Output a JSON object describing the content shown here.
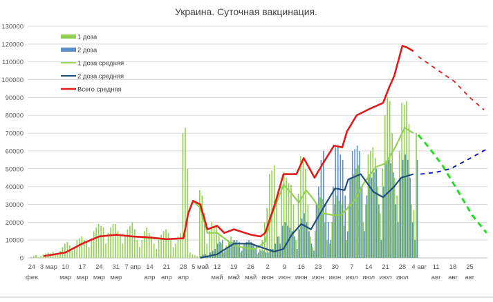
{
  "chart_data": {
    "type": "bar+line",
    "title": "Украина. Суточная вакцинация.",
    "xlabel": "",
    "ylabel": "",
    "ylim": [
      0,
      130000
    ],
    "yticks": [
      "0",
      "10000",
      "20000",
      "30000",
      "40000",
      "50000",
      "60000",
      "70000",
      "80000",
      "90000",
      "100000",
      "110000",
      "120000",
      "130000"
    ],
    "grid": true,
    "legend_position": "top-left",
    "x_unit": "days since 24 фев",
    "xlim": [
      -2,
      189
    ],
    "xticks": [
      {
        "day": 0,
        "l1": "24",
        "l2": "фев"
      },
      {
        "day": 7,
        "l1": "3 мар",
        "l2": ""
      },
      {
        "day": 14,
        "l1": "10",
        "l2": "мар"
      },
      {
        "day": 21,
        "l1": "17",
        "l2": "мар"
      },
      {
        "day": 28,
        "l1": "24",
        "l2": "мар"
      },
      {
        "day": 35,
        "l1": "31",
        "l2": "мар"
      },
      {
        "day": 42,
        "l1": "7 апр",
        "l2": ""
      },
      {
        "day": 49,
        "l1": "14",
        "l2": "апр"
      },
      {
        "day": 56,
        "l1": "21",
        "l2": "апр"
      },
      {
        "day": 63,
        "l1": "28",
        "l2": "апр"
      },
      {
        "day": 70,
        "l1": "5 май",
        "l2": ""
      },
      {
        "day": 77,
        "l1": "12",
        "l2": "май"
      },
      {
        "day": 84,
        "l1": "19",
        "l2": "май"
      },
      {
        "day": 91,
        "l1": "26",
        "l2": "май"
      },
      {
        "day": 98,
        "l1": "2",
        "l2": "июн"
      },
      {
        "day": 105,
        "l1": "9",
        "l2": "июн"
      },
      {
        "day": 112,
        "l1": "16",
        "l2": "июн"
      },
      {
        "day": 119,
        "l1": "23",
        "l2": "июн"
      },
      {
        "day": 126,
        "l1": "30",
        "l2": "июн"
      },
      {
        "day": 133,
        "l1": "7",
        "l2": "июл"
      },
      {
        "day": 140,
        "l1": "14",
        "l2": "июл"
      },
      {
        "day": 147,
        "l1": "21",
        "l2": "июл"
      },
      {
        "day": 154,
        "l1": "28",
        "l2": "июл"
      },
      {
        "day": 161,
        "l1": "4 авг",
        "l2": ""
      },
      {
        "day": 168,
        "l1": "11",
        "l2": "авг"
      },
      {
        "day": 175,
        "l1": "18",
        "l2": "авг"
      },
      {
        "day": 182,
        "l1": "25",
        "l2": "авг"
      }
    ],
    "series": [
      {
        "name": "1 доза",
        "kind": "bar",
        "color": "#92d050",
        "values": [
          500,
          1000,
          1500,
          500,
          1000,
          2000,
          2500,
          3000,
          2500,
          3500,
          1500,
          2000,
          4000,
          6000,
          8000,
          9000,
          7000,
          4000,
          6000,
          10000,
          11000,
          12000,
          10000,
          9000,
          6000,
          11000,
          15000,
          17000,
          19000,
          18000,
          17000,
          8000,
          14000,
          17000,
          19000,
          19000,
          15000,
          13000,
          8000,
          12000,
          16000,
          18000,
          20000,
          16000,
          10000,
          6000,
          10000,
          15000,
          17000,
          14000,
          12000,
          8000,
          5000,
          10000,
          13000,
          15000,
          16000,
          14000,
          11000,
          6000,
          8000,
          12000,
          14000,
          70000,
          73000,
          50000,
          3000,
          2000,
          1500,
          1000,
          38000,
          35000,
          25000,
          8000,
          15000,
          20000,
          18000,
          18000,
          14000,
          8000,
          3000,
          7000,
          10000,
          12000,
          10000,
          9000,
          7000,
          3000,
          6000,
          8000,
          9000,
          9000,
          7000,
          5000,
          2000,
          5000,
          10000,
          20000,
          28000,
          47000,
          49000,
          52000,
          34000,
          12000,
          40000,
          48000,
          45000,
          42000,
          41000,
          30000,
          10000,
          36000,
          57000,
          54000,
          50000,
          30000,
          12000,
          6000,
          15000,
          30000,
          34000,
          33000,
          20000,
          10000,
          8000,
          20000,
          30000,
          35000,
          32000,
          30000,
          18000,
          10000,
          30000,
          45000,
          47000,
          50000,
          52000,
          40000,
          20000,
          30000,
          58000,
          60000,
          62000,
          56000,
          40000,
          25000,
          50000,
          80000,
          90000,
          88000,
          70000,
          45000,
          35000,
          60000,
          87000,
          86000,
          88000,
          75000,
          30000,
          27000,
          70000
        ]
      },
      {
        "name": "2 доза",
        "kind": "bar",
        "color": "#5b8fc9",
        "values": [
          0,
          0,
          0,
          0,
          0,
          0,
          0,
          0,
          0,
          0,
          0,
          0,
          0,
          0,
          0,
          0,
          0,
          0,
          0,
          0,
          0,
          0,
          0,
          0,
          0,
          0,
          0,
          0,
          0,
          0,
          0,
          0,
          0,
          0,
          0,
          0,
          0,
          0,
          0,
          0,
          0,
          0,
          0,
          0,
          0,
          0,
          0,
          0,
          0,
          0,
          0,
          0,
          0,
          0,
          0,
          0,
          0,
          0,
          0,
          0,
          0,
          0,
          0,
          0,
          0,
          0,
          0,
          0,
          0,
          0,
          1000,
          2000,
          2000,
          1000,
          3000,
          4000,
          5000,
          8000,
          9000,
          10000,
          4000,
          6000,
          8000,
          9000,
          10000,
          10000,
          9000,
          4000,
          8000,
          9000,
          10000,
          9000,
          8000,
          7000,
          3000,
          4000,
          4000,
          3000,
          3000,
          5000,
          5000,
          8000,
          12000,
          8000,
          18000,
          20000,
          18000,
          17000,
          15000,
          12000,
          5000,
          16000,
          22000,
          25000,
          20000,
          15000,
          8000,
          4000,
          30000,
          40000,
          55000,
          60000,
          30000,
          20000,
          10000,
          40000,
          62000,
          63000,
          58000,
          55000,
          35000,
          15000,
          45000,
          60000,
          61000,
          63000,
          60000,
          40000,
          15000,
          35000,
          47000,
          45000,
          48000,
          50000,
          30000,
          10000,
          40000,
          54000,
          55000,
          53000,
          48000,
          30000,
          20000,
          45000,
          55000,
          58000,
          55000,
          45000,
          20000,
          10000,
          55000
        ]
      },
      {
        "name": "1 доза средняя",
        "kind": "line",
        "color": "#92d050",
        "points": [
          [
            5,
            1000
          ],
          [
            14,
            3000
          ],
          [
            21,
            8000
          ],
          [
            28,
            12000
          ],
          [
            35,
            13000
          ],
          [
            42,
            12000
          ],
          [
            49,
            11000
          ],
          [
            56,
            10500
          ],
          [
            63,
            11000
          ],
          [
            65,
            25000
          ],
          [
            67,
            32000
          ],
          [
            70,
            28000
          ],
          [
            73,
            14000
          ],
          [
            77,
            14000
          ],
          [
            84,
            7000
          ],
          [
            91,
            5000
          ],
          [
            93,
            5000
          ],
          [
            97,
            9000
          ],
          [
            100,
            25000
          ],
          [
            104.6,
            41000
          ],
          [
            108,
            36000
          ],
          [
            111,
            31000
          ],
          [
            114,
            38000
          ],
          [
            117,
            33000
          ],
          [
            121,
            25000
          ],
          [
            125,
            24000
          ],
          [
            128.5,
            24000
          ],
          [
            134,
            32000
          ],
          [
            138,
            42000
          ],
          [
            143,
            51000
          ],
          [
            147,
            53000
          ],
          [
            151,
            62000
          ],
          [
            155,
            73000
          ],
          [
            158.6,
            70000
          ]
        ],
        "forecast_color": "#22dd22",
        "forecast": [
          [
            160.6,
            69000
          ],
          [
            165,
            62000
          ],
          [
            170.6,
            52000
          ],
          [
            176,
            40000
          ],
          [
            183,
            24000
          ],
          [
            189,
            14000
          ]
        ]
      },
      {
        "name": "2 доза средняя",
        "kind": "line",
        "color": "#1f4e79",
        "points": [
          [
            70,
            0
          ],
          [
            77,
            2000
          ],
          [
            84,
            8000
          ],
          [
            91,
            8000
          ],
          [
            93,
            7000
          ],
          [
            100.7,
            3500
          ],
          [
            104.6,
            5000
          ],
          [
            108,
            13000
          ],
          [
            112,
            19000
          ],
          [
            116,
            16000
          ],
          [
            122,
            30000
          ],
          [
            126,
            39000
          ],
          [
            130,
            38000
          ],
          [
            131.5,
            44000
          ],
          [
            136.7,
            47000
          ],
          [
            142,
            37000
          ],
          [
            146,
            34000
          ],
          [
            150.6,
            40000
          ],
          [
            153.5,
            45000
          ],
          [
            158.6,
            47000
          ]
        ],
        "forecast_color": "#0000cc",
        "forecast": [
          [
            161.5,
            47000
          ],
          [
            168,
            48000
          ],
          [
            174,
            50000
          ],
          [
            181,
            55000
          ],
          [
            189,
            61000
          ]
        ]
      },
      {
        "name": "Всего средняя",
        "kind": "line",
        "color": "#e31a1c",
        "points": [
          [
            5,
            1000
          ],
          [
            14,
            3000
          ],
          [
            21,
            8000
          ],
          [
            28,
            12000
          ],
          [
            35,
            13000
          ],
          [
            42,
            12000
          ],
          [
            49,
            11500
          ],
          [
            56,
            10500
          ],
          [
            63,
            11000
          ],
          [
            65,
            25000
          ],
          [
            67,
            32000
          ],
          [
            70,
            30000
          ],
          [
            73,
            16000
          ],
          [
            77,
            18000
          ],
          [
            80,
            14000
          ],
          [
            84,
            16000
          ],
          [
            91,
            13000
          ],
          [
            95,
            12000
          ],
          [
            97,
            14000
          ],
          [
            101,
            30000
          ],
          [
            104.6,
            47000
          ],
          [
            110,
            47000
          ],
          [
            113,
            56000
          ],
          [
            117.5,
            45000
          ],
          [
            121,
            53000
          ],
          [
            125.6,
            63000
          ],
          [
            129,
            62000
          ],
          [
            131,
            71000
          ],
          [
            135,
            80000
          ],
          [
            141,
            84000
          ],
          [
            146,
            87000
          ],
          [
            148.6,
            96000
          ],
          [
            150.6,
            102000
          ],
          [
            154,
            119000
          ],
          [
            156,
            118000
          ],
          [
            158.6,
            116000
          ]
        ],
        "forecast_color": "#e31a1c",
        "forecast": [
          [
            160.6,
            113000
          ],
          [
            168,
            106000
          ],
          [
            175.6,
            99000
          ],
          [
            182,
            90000
          ],
          [
            188,
            83000
          ]
        ]
      }
    ]
  }
}
